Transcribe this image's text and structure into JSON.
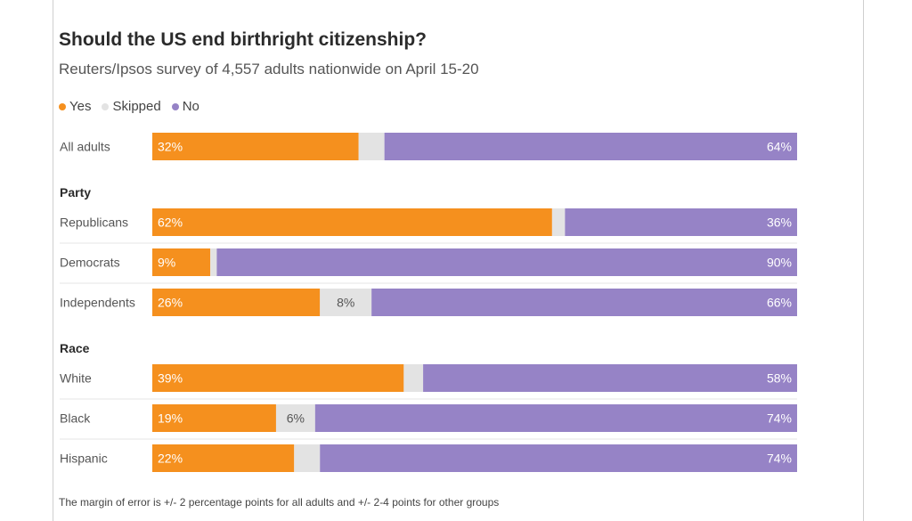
{
  "chart_data": {
    "type": "bar",
    "stacked": true,
    "orientation": "horizontal",
    "title": "Should the US end birthright citizenship?",
    "subtitle": "Reuters/Ipsos survey of 4,557 adults nationwide on April 15-20",
    "legend": [
      "Yes",
      "Skipped",
      "No"
    ],
    "colors": {
      "Yes": "#f5901e",
      "Skipped": "#e3e3e3",
      "No": "#9683c6"
    },
    "rows": [
      {
        "group": "",
        "label": "All adults",
        "values": [
          32,
          4,
          64
        ],
        "labels": [
          "32%",
          "",
          "64%"
        ]
      },
      {
        "group": "Party",
        "label": "Republicans",
        "values": [
          62,
          2,
          36
        ],
        "labels": [
          "62%",
          "",
          "36%"
        ]
      },
      {
        "group": "Party",
        "label": "Democrats",
        "values": [
          9,
          1,
          90
        ],
        "labels": [
          "9%",
          "",
          "90%"
        ]
      },
      {
        "group": "Party",
        "label": "Independents",
        "values": [
          26,
          8,
          66
        ],
        "labels": [
          "26%",
          "8%",
          "66%"
        ]
      },
      {
        "group": "Race",
        "label": "White",
        "values": [
          39,
          3,
          58
        ],
        "labels": [
          "39%",
          "",
          "58%"
        ]
      },
      {
        "group": "Race",
        "label": "Black",
        "values": [
          19,
          6,
          74
        ],
        "labels": [
          "19%",
          "6%",
          "74%"
        ]
      },
      {
        "group": "Race",
        "label": "Hispanic",
        "values": [
          22,
          4,
          74
        ],
        "labels": [
          "22%",
          "",
          "74%"
        ]
      }
    ],
    "footnote": "The margin of error is +/- 2 percentage points for all adults and +/- 2-4 points for other groups"
  }
}
